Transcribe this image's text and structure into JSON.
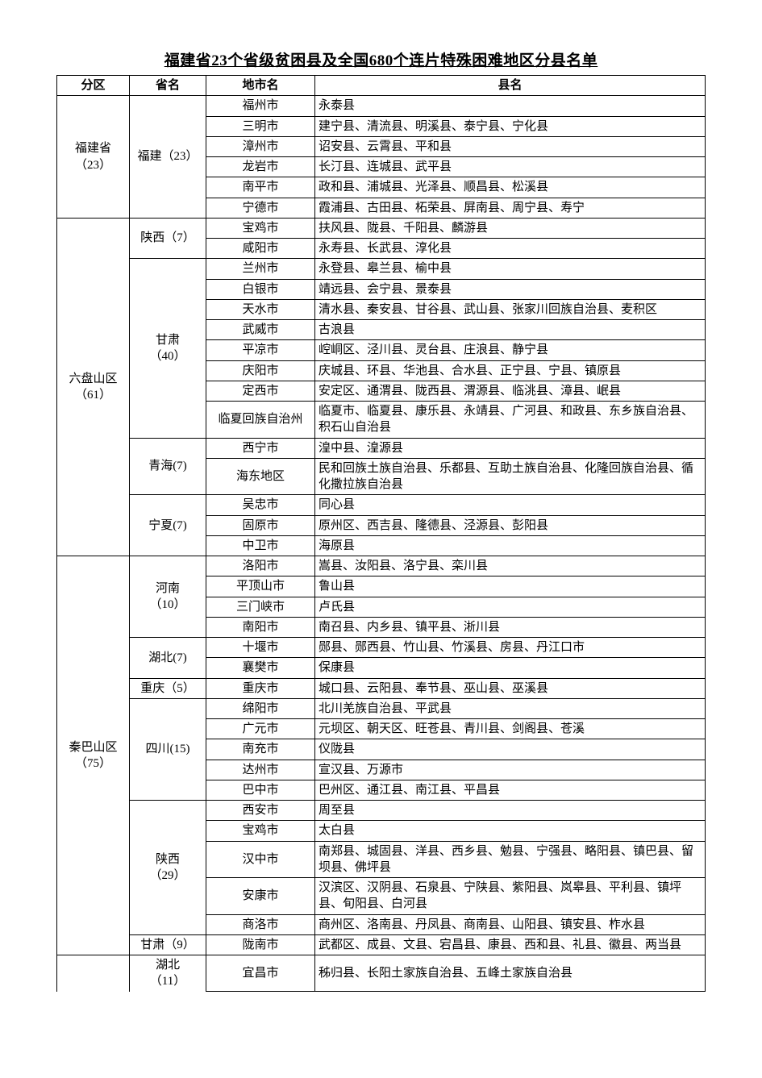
{
  "title": "福建省23个省级贫困县及全国680个连片特殊困难地区分县名单",
  "headers": {
    "zone": "分区",
    "prov": "省名",
    "city": "地市名",
    "county": "县名"
  },
  "zones": [
    {
      "name": "福建省\n（23）",
      "provinces": [
        {
          "name": "福建（23）",
          "rows": [
            {
              "city": "福州市",
              "counties": "永泰县"
            },
            {
              "city": "三明市",
              "counties": "建宁县、清流县、明溪县、泰宁县、宁化县"
            },
            {
              "city": "漳州市",
              "counties": "诏安县、云霄县、平和县"
            },
            {
              "city": "龙岩市",
              "counties": "长汀县、连城县、武平县"
            },
            {
              "city": "南平市",
              "counties": "政和县、浦城县、光泽县、顺昌县、松溪县"
            },
            {
              "city": "宁德市",
              "counties": "霞浦县、古田县、柘荣县、屏南县、周宁县、寿宁"
            }
          ]
        }
      ]
    },
    {
      "name": "六盘山区\n（61）",
      "provinces": [
        {
          "name": "陕西（7）",
          "rows": [
            {
              "city": "宝鸡市",
              "counties": "扶风县、陇县、千阳县、麟游县"
            },
            {
              "city": "咸阳市",
              "counties": "永寿县、长武县、淳化县"
            }
          ]
        },
        {
          "name": "甘肃\n（40）",
          "rows": [
            {
              "city": "兰州市",
              "counties": "永登县、皋兰县、榆中县"
            },
            {
              "city": "白银市",
              "counties": "靖远县、会宁县、景泰县"
            },
            {
              "city": "天水市",
              "counties": "清水县、秦安县、甘谷县、武山县、张家川回族自治县、麦积区"
            },
            {
              "city": "武威市",
              "counties": "古浪县"
            },
            {
              "city": "平凉市",
              "counties": "崆峒区、泾川县、灵台县、庄浪县、静宁县"
            },
            {
              "city": "庆阳市",
              "counties": "庆城县、环县、华池县、合水县、正宁县、宁县、镇原县"
            },
            {
              "city": "定西市",
              "counties": "安定区、通渭县、陇西县、渭源县、临洮县、漳县、岷县"
            },
            {
              "city": "临夏回族自治州",
              "counties": "临夏市、临夏县、康乐县、永靖县、广河县、和政县、东乡族自治县、积石山自治县"
            }
          ]
        },
        {
          "name": "青海(7)",
          "rows": [
            {
              "city": "西宁市",
              "counties": "湟中县、湟源县"
            },
            {
              "city": "海东地区",
              "counties": "民和回族土族自治县、乐都县、互助土族自治县、化隆回族自治县、循化撒拉族自治县"
            }
          ]
        },
        {
          "name": "宁夏(7)",
          "rows": [
            {
              "city": "吴忠市",
              "counties": "同心县"
            },
            {
              "city": "固原市",
              "counties": "原州区、西吉县、隆德县、泾源县、彭阳县"
            },
            {
              "city": "中卫市",
              "counties": "海原县"
            }
          ]
        }
      ]
    },
    {
      "name": "秦巴山区\n（75）",
      "provinces": [
        {
          "name": "河南\n（10）",
          "rows": [
            {
              "city": "洛阳市",
              "counties": "嵩县、汝阳县、洛宁县、栾川县"
            },
            {
              "city": "平顶山市",
              "counties": "鲁山县"
            },
            {
              "city": "三门峡市",
              "counties": "卢氏县"
            },
            {
              "city": "南阳市",
              "counties": "南召县、内乡县、镇平县、淅川县"
            }
          ]
        },
        {
          "name": "湖北(7)",
          "rows": [
            {
              "city": "十堰市",
              "counties": "郧县、郧西县、竹山县、竹溪县、房县、丹江口市"
            },
            {
              "city": "襄樊市",
              "counties": "保康县"
            }
          ]
        },
        {
          "name": "重庆（5）",
          "rows": [
            {
              "city": "重庆市",
              "counties": "城口县、云阳县、奉节县、巫山县、巫溪县"
            }
          ]
        },
        {
          "name": "四川(15)",
          "rows": [
            {
              "city": "绵阳市",
              "counties": "北川羌族自治县、平武县"
            },
            {
              "city": "广元市",
              "counties": "元坝区、朝天区、旺苍县、青川县、剑阁县、苍溪"
            },
            {
              "city": "南充市",
              "counties": "仪陇县"
            },
            {
              "city": "达州市",
              "counties": "宣汉县、万源市"
            },
            {
              "city": "巴中市",
              "counties": "巴州区、通江县、南江县、平昌县"
            }
          ]
        },
        {
          "name": "陕西\n（29）",
          "rows": [
            {
              "city": "西安市",
              "counties": "周至县"
            },
            {
              "city": "宝鸡市",
              "counties": "太白县"
            },
            {
              "city": "汉中市",
              "counties": "南郑县、城固县、洋县、西乡县、勉县、宁强县、略阳县、镇巴县、留坝县、佛坪县"
            },
            {
              "city": "安康市",
              "counties": "汉滨区、汉阴县、石泉县、宁陕县、紫阳县、岚皋县、平利县、镇坪县、旬阳县、白河县"
            },
            {
              "city": "商洛市",
              "counties": "商州区、洛南县、丹凤县、商南县、山阳县、镇安县、柞水县"
            }
          ]
        },
        {
          "name": "甘肃（9）",
          "rows": [
            {
              "city": "陇南市",
              "counties": "武都区、成县、文县、宕昌县、康县、西和县、礼县、徽县、两当县"
            }
          ]
        }
      ]
    },
    {
      "name": "",
      "nameOpen": true,
      "provinces": [
        {
          "name": "湖北\n（11）",
          "nameOpen": true,
          "rows": [
            {
              "city": "宜昌市",
              "counties": "秭归县、长阳土家族自治县、五峰土家族自治县"
            }
          ]
        }
      ]
    }
  ]
}
